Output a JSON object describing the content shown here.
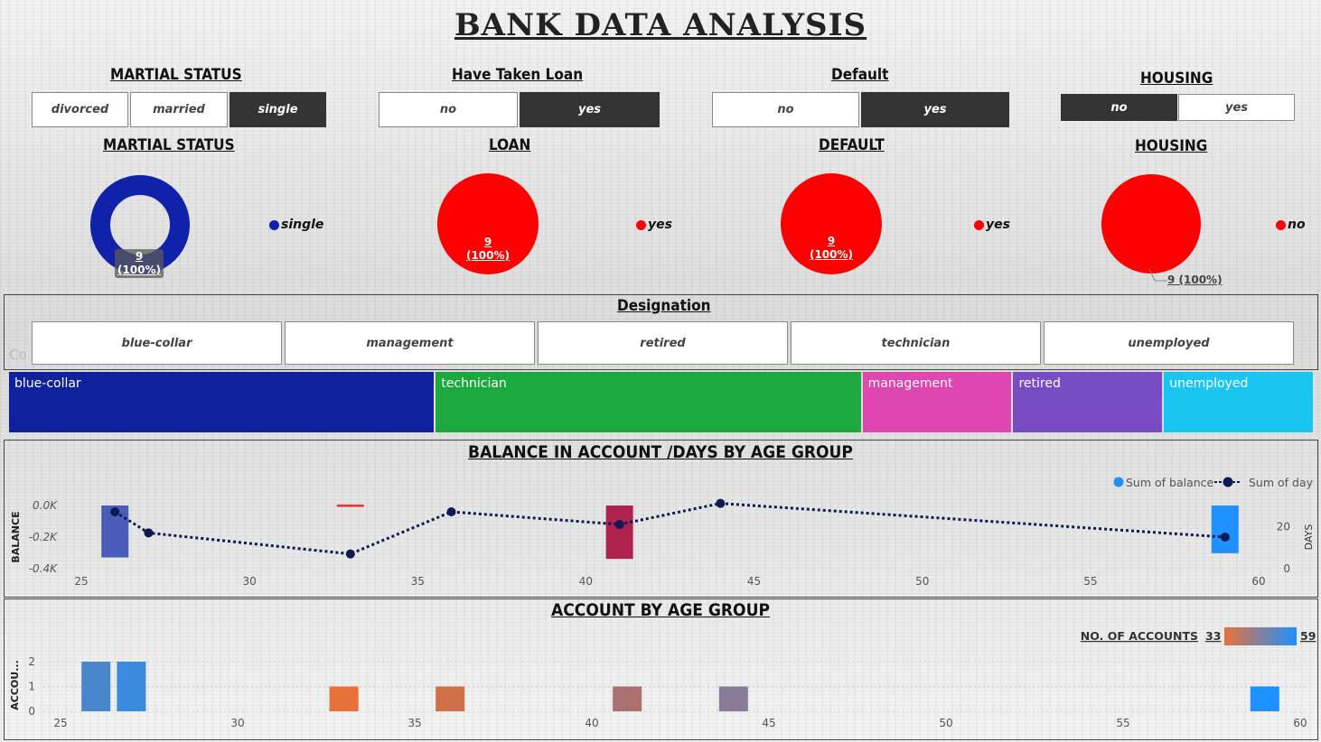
{
  "title": "BANK  DATA  ANALYSIS",
  "filters": {
    "marital": {
      "label": "MARTIAL STATUS",
      "options": [
        "divorced",
        "married",
        "single"
      ],
      "selected": "single"
    },
    "loan": {
      "label": "Have Taken Loan",
      "options": [
        "no",
        "yes"
      ],
      "selected": "yes"
    },
    "default": {
      "label": "Default",
      "options": [
        "no",
        "yes"
      ],
      "selected": "yes"
    },
    "housing": {
      "label": "HOUSING",
      "options": [
        "no",
        "yes"
      ],
      "selected": "no"
    }
  },
  "pies": {
    "marital": {
      "label": "MARTIAL STATUS",
      "legend": "single",
      "value": "9",
      "pct": "(100%)",
      "color": "#1122aa",
      "share": 1.0
    },
    "loan": {
      "label": "LOAN",
      "legend": "yes",
      "value": "9",
      "pct": "(100%)",
      "color": "#ff0000",
      "share": 1.0
    },
    "default": {
      "label": "DEFAULT",
      "legend": "yes",
      "value": "9",
      "pct": "(100%)",
      "color": "#ff0000",
      "share": 1.0
    },
    "housing": {
      "label": "HOUSING",
      "legend": "no",
      "value": "9 (100%)",
      "color": "#ff0000",
      "share": 1.0
    }
  },
  "designation": {
    "label": "Designation",
    "options": [
      "blue-collar",
      "management",
      "retired",
      "technician",
      "unemployed"
    ],
    "watermark": "Co",
    "treemap": [
      {
        "name": "blue-collar",
        "share": 3,
        "color": "#10219d"
      },
      {
        "name": "technician",
        "share": 3,
        "color": "#1ba83c"
      },
      {
        "name": "management",
        "share": 1,
        "color": "#e046b0"
      },
      {
        "name": "retired",
        "share": 1,
        "color": "#7a4cc3"
      },
      {
        "name": "unemployed",
        "share": 1,
        "color": "#19c6f2"
      }
    ]
  },
  "chart_data": [
    {
      "type": "bar",
      "title": "BALANCE IN ACCOUNT /DAYS BY AGE GROUP",
      "ylabel": "BALANCE",
      "y2label": "DAYS",
      "legend": [
        "Sum of balance",
        "Sum of day"
      ],
      "legend_colors": [
        "#1e90ff",
        "#0d1a55"
      ],
      "xlim": [
        25,
        60
      ],
      "xticks": [
        25,
        30,
        35,
        40,
        45,
        50,
        55,
        60
      ],
      "ylim": [
        -0.45,
        0.0
      ],
      "yticks": [
        "0.0K",
        "-0.2K",
        "-0.4K"
      ],
      "y2lim": [
        0,
        30
      ],
      "y2ticks": [
        0,
        20
      ],
      "bars": [
        {
          "x": 26,
          "value": -0.37,
          "color": "#4a5cba"
        },
        {
          "x": 33,
          "value": 0.0,
          "color": "#ff2a2a"
        },
        {
          "x": 41,
          "value": -0.38,
          "color": "#b0224e"
        },
        {
          "x": 59,
          "value": -0.34,
          "color": "#1e90ff"
        }
      ],
      "line": {
        "x": [
          26,
          27,
          33,
          36,
          41,
          44,
          59
        ],
        "days": [
          27,
          17,
          7,
          27,
          21,
          31,
          15
        ]
      }
    },
    {
      "type": "bar",
      "title": "ACCOUNT BY AGE GROUP",
      "ylabel": "ACCOU...",
      "legend_title": "NO. OF ACCOUNTS",
      "legend_min": "33",
      "legend_max": "59",
      "xlim": [
        25,
        60
      ],
      "xticks": [
        25,
        30,
        35,
        40,
        45,
        50,
        55,
        60
      ],
      "ylim": [
        0,
        2
      ],
      "yticks": [
        0,
        1,
        2
      ],
      "bars": [
        {
          "x": 26,
          "value": 2,
          "color": "#4a86cc"
        },
        {
          "x": 27,
          "value": 2,
          "color": "#3a8ae0"
        },
        {
          "x": 33,
          "value": 1,
          "color": "#e8703a"
        },
        {
          "x": 36,
          "value": 1,
          "color": "#d0704a"
        },
        {
          "x": 41,
          "value": 1,
          "color": "#a87070"
        },
        {
          "x": 44,
          "value": 1,
          "color": "#8a7c98"
        },
        {
          "x": 59,
          "value": 1,
          "color": "#1e90ff"
        }
      ]
    }
  ]
}
